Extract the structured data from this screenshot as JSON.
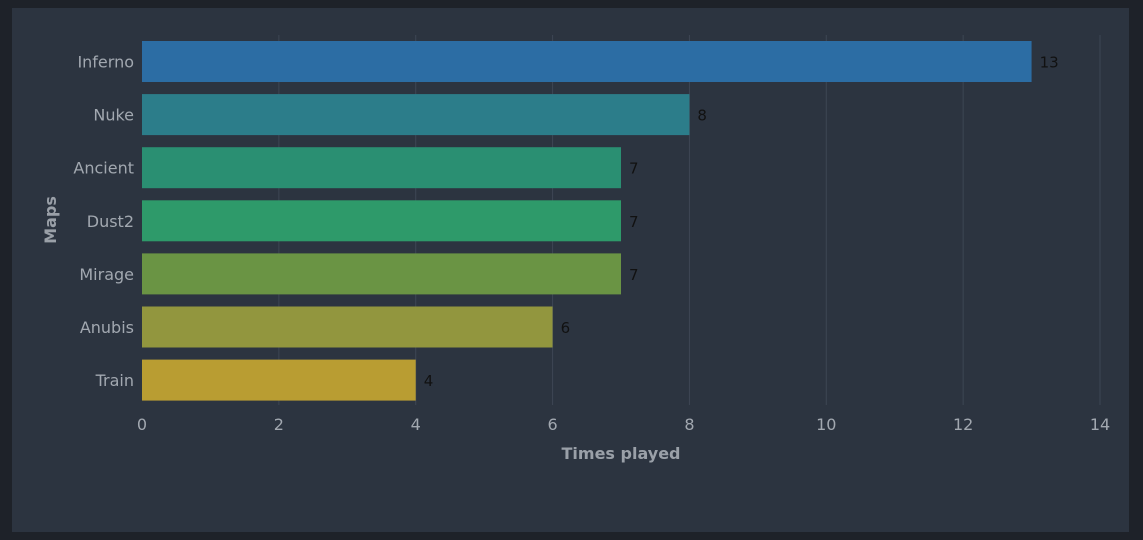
{
  "chart_data": {
    "type": "bar",
    "orientation": "horizontal",
    "categories": [
      "Inferno",
      "Nuke",
      "Ancient",
      "Dust2",
      "Mirage",
      "Anubis",
      "Train"
    ],
    "values": [
      13,
      8,
      7,
      7,
      7,
      6,
      4
    ],
    "colors": [
      "#2c6da4",
      "#2c7d8a",
      "#2a8f72",
      "#2e9a6a",
      "#6a9444",
      "#92963e",
      "#b99d32"
    ],
    "xlabel": "Times played",
    "ylabel": "Maps",
    "xlim": [
      0,
      14
    ],
    "xticks": [
      0,
      2,
      4,
      6,
      8,
      10,
      12,
      14
    ],
    "grid": "vertical",
    "data_labels": [
      "13",
      "8",
      "7",
      "7",
      "7",
      "6",
      "4"
    ]
  }
}
